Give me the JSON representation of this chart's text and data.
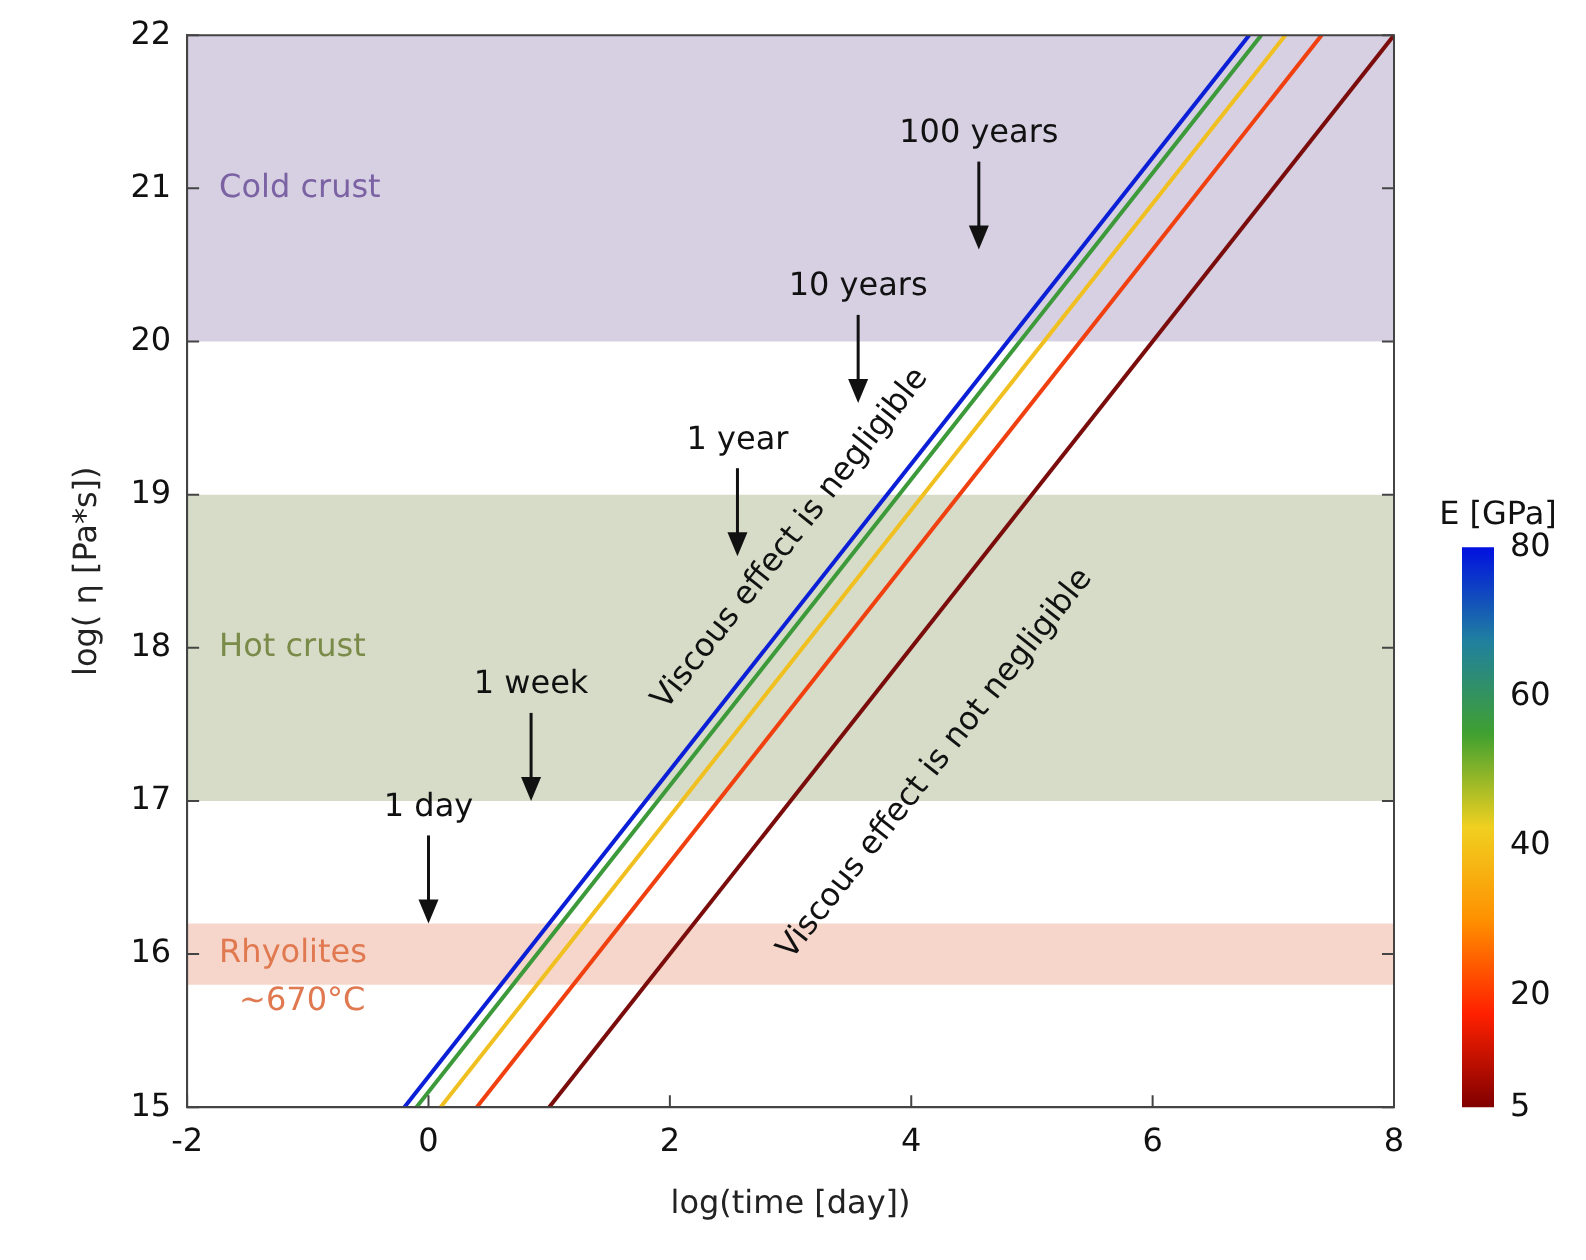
{
  "chart_data": {
    "type": "line",
    "xlabel": "log(time [day])",
    "ylabel": "log( η [Pa*s])",
    "clabel": "E [GPa]",
    "clim": [
      5,
      80
    ],
    "cticks": [
      5,
      20,
      40,
      60,
      80
    ],
    "xlim": [
      -2,
      8
    ],
    "ylim": [
      15,
      22
    ],
    "xticks": [
      -2,
      0,
      2,
      4,
      6,
      8
    ],
    "yticks": [
      15,
      16,
      17,
      18,
      19,
      20,
      21,
      22
    ],
    "grid": false,
    "legend": false,
    "marker": "none",
    "line_style": "solid",
    "series": [
      {
        "color": "#0b1fd6",
        "x": [
          -0.2,
          6.8
        ],
        "values": [
          15,
          22
        ]
      },
      {
        "color": "#3c9a3a",
        "x": [
          -0.1,
          6.9
        ],
        "values": [
          15,
          22
        ]
      },
      {
        "color": "#f0c020",
        "x": [
          0.1,
          7.1
        ],
        "values": [
          15,
          22
        ]
      },
      {
        "color": "#f04010",
        "x": [
          0.4,
          7.4
        ],
        "values": [
          15,
          22
        ]
      },
      {
        "color": "#7a0c0c",
        "x": [
          1,
          8
        ],
        "values": [
          15,
          22
        ]
      }
    ],
    "bands": [
      {
        "axis": "y",
        "from": 20,
        "to": 22,
        "label": "Cold crust",
        "color": "#7b62a3"
      },
      {
        "axis": "y",
        "from": 17,
        "to": 19,
        "label": "Hot crust",
        "color": "#7a8a48"
      },
      {
        "axis": "y",
        "from": 15.8,
        "to": 16.2,
        "label": "Rhyolites\n~670°C",
        "color": "#e07850"
      }
    ],
    "annotations": [
      {
        "text": "1 day",
        "x": 0,
        "y": 16.2
      },
      {
        "text": "1 week",
        "x": 0.85,
        "y": 17
      },
      "1 year",
      "10 years",
      "100 years",
      "Viscous effect is negligible",
      "Viscous effect is not negligible"
    ]
  }
}
